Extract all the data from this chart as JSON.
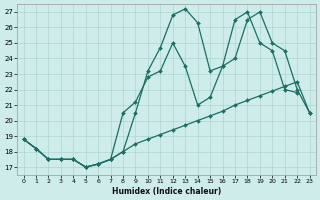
{
  "xlabel": "Humidex (Indice chaleur)",
  "bg_color": "#ceecea",
  "line_color": "#1a6e64",
  "grid_color": "#aed4d0",
  "xlim": [
    -0.5,
    23.5
  ],
  "ylim": [
    16.5,
    27.5
  ],
  "xticks": [
    0,
    1,
    2,
    3,
    4,
    5,
    6,
    7,
    8,
    9,
    10,
    11,
    12,
    13,
    14,
    15,
    16,
    17,
    18,
    19,
    20,
    21,
    22,
    23
  ],
  "yticks": [
    17,
    18,
    19,
    20,
    21,
    22,
    23,
    24,
    25,
    26,
    27
  ],
  "s1_x": [
    0,
    1,
    2,
    3,
    4,
    5,
    6,
    7,
    8,
    9,
    10,
    11,
    12,
    13,
    14,
    15,
    16,
    17,
    18,
    19,
    20,
    21,
    22,
    23
  ],
  "s1_y": [
    18.8,
    18.2,
    17.5,
    17.5,
    17.5,
    17.0,
    17.2,
    17.5,
    18.0,
    18.5,
    18.8,
    19.1,
    19.4,
    19.7,
    20.0,
    20.3,
    20.6,
    21.0,
    21.3,
    21.6,
    21.9,
    22.2,
    22.5,
    20.5
  ],
  "s2_x": [
    0,
    1,
    2,
    3,
    4,
    5,
    6,
    7,
    8,
    9,
    10,
    11,
    12,
    13,
    14,
    15,
    16,
    17,
    18,
    19,
    20,
    21,
    22
  ],
  "s2_y": [
    18.8,
    18.2,
    17.5,
    17.5,
    17.5,
    17.0,
    17.2,
    17.5,
    18.0,
    20.5,
    23.2,
    24.7,
    26.8,
    27.2,
    26.3,
    23.2,
    23.5,
    26.5,
    27.0,
    25.0,
    24.5,
    22.0,
    21.8
  ],
  "s3_x": [
    0,
    1,
    2,
    3,
    4,
    5,
    6,
    7,
    8,
    9,
    10,
    11,
    12,
    13,
    14,
    15,
    16,
    17,
    18,
    19,
    20,
    21,
    22,
    23
  ],
  "s3_y": [
    18.8,
    18.2,
    17.5,
    17.5,
    17.5,
    17.0,
    17.2,
    17.5,
    20.5,
    21.2,
    22.8,
    23.2,
    25.0,
    23.5,
    21.0,
    21.5,
    23.5,
    24.0,
    26.5,
    27.0,
    25.0,
    24.5,
    22.0,
    20.5
  ]
}
